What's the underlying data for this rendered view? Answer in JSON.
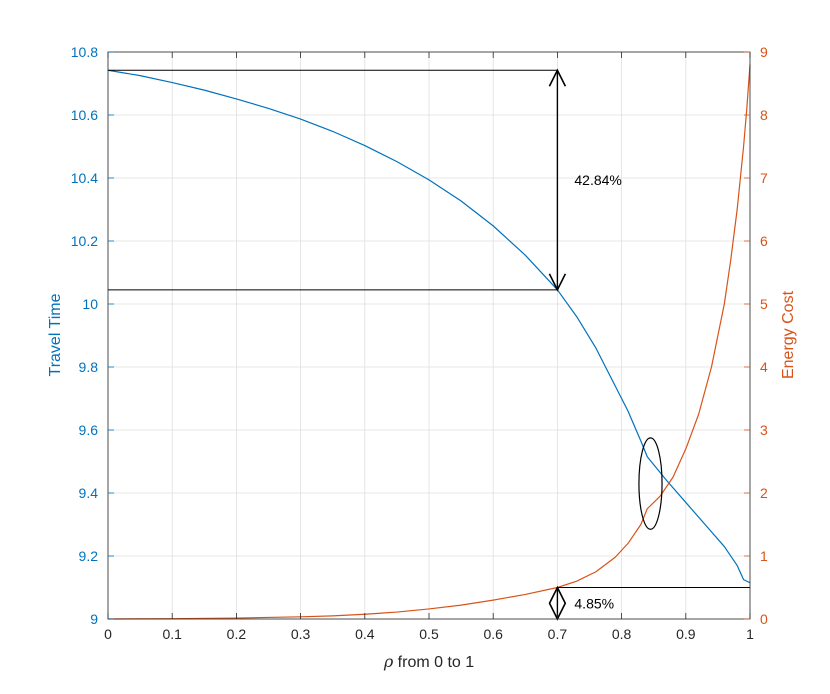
{
  "chart_data": {
    "type": "line",
    "title": "",
    "xlabel": "ρ from 0 to 1",
    "xlabel_parts": {
      "symbol": "ρ",
      "rest": " from 0 to 1"
    },
    "ylabel_left": "Travel Time",
    "ylabel_right": "Energy Cost",
    "xlim": [
      0,
      1
    ],
    "ylim_left": [
      9,
      10.8
    ],
    "ylim_right": [
      0,
      9
    ],
    "grid": true,
    "x_ticks": [
      "0",
      "0.1",
      "0.2",
      "0.3",
      "0.4",
      "0.5",
      "0.6",
      "0.7",
      "0.8",
      "0.9",
      "1"
    ],
    "y_left_ticks": [
      "9",
      "9.2",
      "9.4",
      "9.6",
      "9.8",
      "10",
      "10.2",
      "10.4",
      "10.6",
      "10.8"
    ],
    "y_right_ticks": [
      "0",
      "1",
      "2",
      "3",
      "4",
      "5",
      "6",
      "7",
      "8",
      "9"
    ],
    "series": [
      {
        "axis": "left",
        "color": "#0072BD",
        "x": [
          0,
          0.05,
          0.1,
          0.15,
          0.2,
          0.25,
          0.3,
          0.35,
          0.4,
          0.45,
          0.5,
          0.55,
          0.6,
          0.65,
          0.7,
          0.73,
          0.76,
          0.79,
          0.81,
          0.83,
          0.84,
          0.85,
          0.87,
          0.9,
          0.93,
          0.96,
          0.98,
          0.99,
          1.0
        ],
        "y": [
          10.742,
          10.725,
          10.703,
          10.679,
          10.651,
          10.621,
          10.587,
          10.548,
          10.503,
          10.452,
          10.394,
          10.327,
          10.248,
          10.155,
          10.045,
          9.96,
          9.86,
          9.74,
          9.66,
          9.565,
          9.515,
          9.49,
          9.44,
          9.37,
          9.3,
          9.23,
          9.17,
          9.125,
          9.115
        ]
      },
      {
        "axis": "right",
        "color": "#D95319",
        "x": [
          0,
          0.1,
          0.2,
          0.3,
          0.35,
          0.4,
          0.45,
          0.5,
          0.55,
          0.6,
          0.65,
          0.7,
          0.73,
          0.76,
          0.79,
          0.81,
          0.83,
          0.84,
          0.86,
          0.88,
          0.9,
          0.92,
          0.94,
          0.96,
          0.97,
          0.98,
          0.99,
          0.995,
          1.0
        ],
        "y": [
          0,
          0.005,
          0.015,
          0.035,
          0.05,
          0.075,
          0.11,
          0.16,
          0.22,
          0.3,
          0.39,
          0.5,
          0.6,
          0.75,
          0.98,
          1.2,
          1.5,
          1.75,
          1.95,
          2.25,
          2.7,
          3.25,
          4.0,
          5.0,
          5.7,
          6.5,
          7.5,
          8.1,
          8.8
        ]
      }
    ],
    "annotations": [
      {
        "type": "hline",
        "axis": "left",
        "y": 10.742,
        "x_from": 0,
        "x_to": 0.7
      },
      {
        "type": "hline",
        "axis": "left",
        "y": 10.045,
        "x_from": 0,
        "x_to": 0.7
      },
      {
        "type": "double-arrow",
        "axis": "left",
        "x": 0.7,
        "y_from": 10.045,
        "y_to": 10.742,
        "label": "42.84%"
      },
      {
        "type": "hline",
        "axis": "right",
        "y": 0.5,
        "x_from": 0.7,
        "x_to": 1.0
      },
      {
        "type": "double-arrow",
        "axis": "right",
        "x": 0.7,
        "y_from": 0,
        "y_to": 0.5,
        "label": "4.85%"
      },
      {
        "type": "ellipse",
        "axis": "left",
        "cx": 0.845,
        "cy": 9.43,
        "rx": 0.018,
        "ry": 0.145
      }
    ]
  }
}
